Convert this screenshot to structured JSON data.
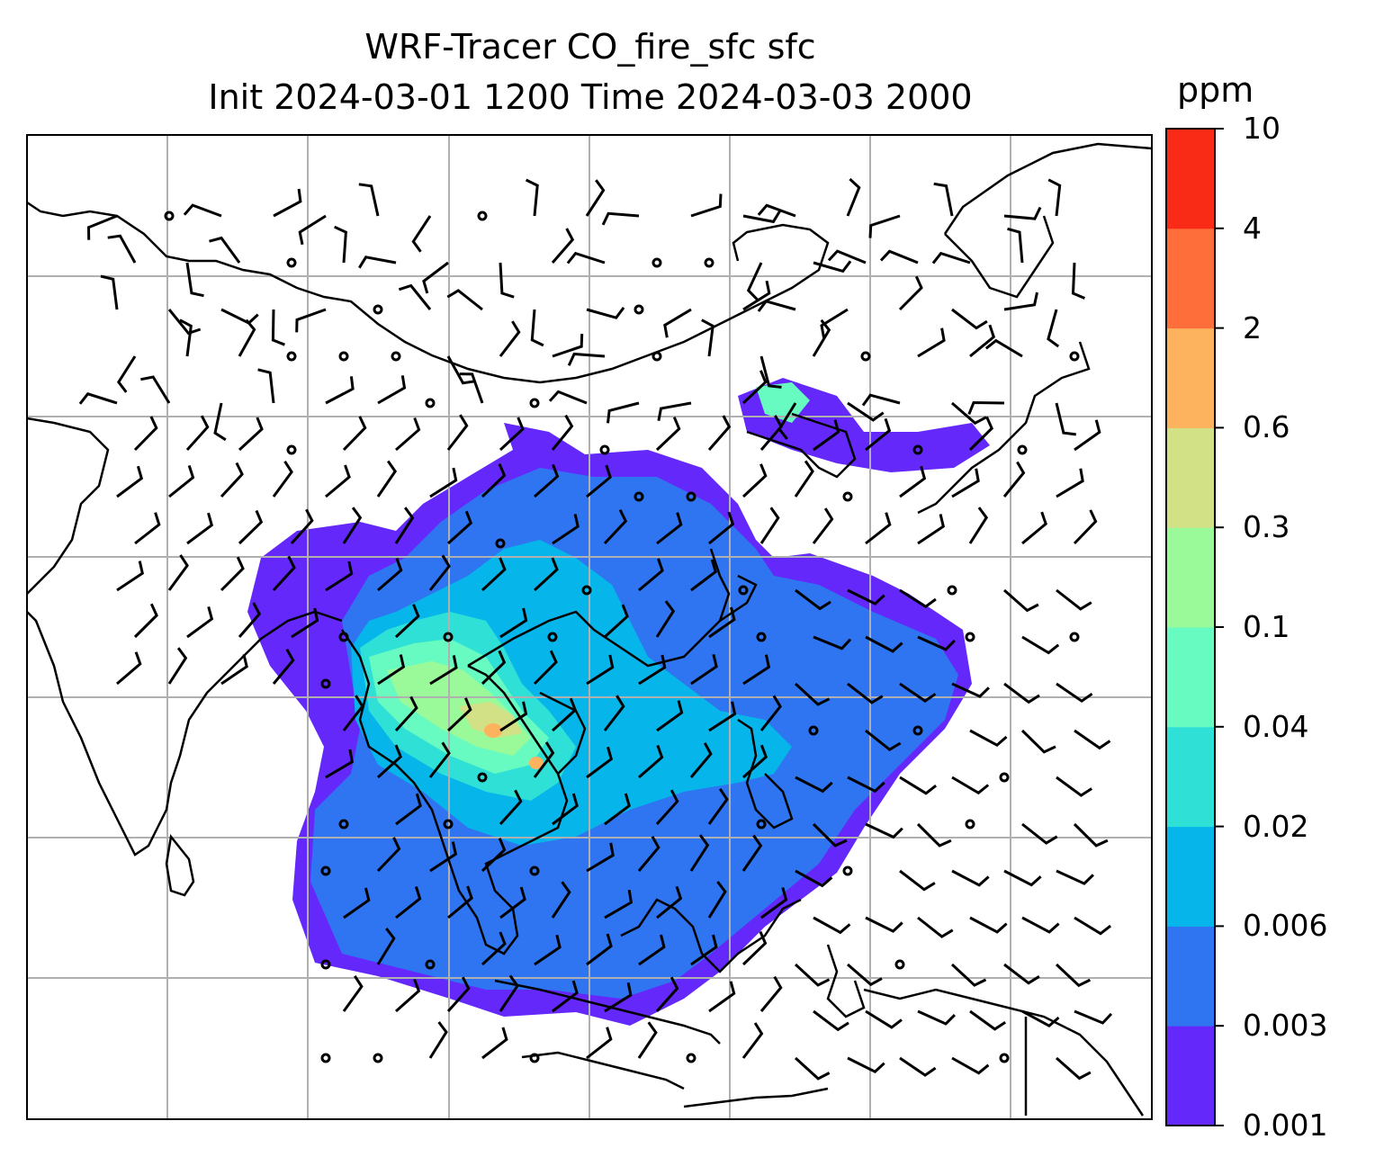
{
  "title": {
    "line1": "WRF-Tracer CO_fire_sfc sfc",
    "line2": "Init 2024-03-01 1200 Time 2024-03-03 2000"
  },
  "colorbar": {
    "unit": "ppm",
    "levels": [
      "0.001",
      "0.003",
      "0.006",
      "0.02",
      "0.04",
      "0.1",
      "0.3",
      "0.6",
      "2",
      "4",
      "10"
    ],
    "colors": [
      "#6428fa",
      "#2f74f0",
      "#06b6ea",
      "#2fe0d6",
      "#67fbc2",
      "#9afa9a",
      "#d2e086",
      "#fdb25e",
      "#fd6e3a",
      "#f92a16"
    ]
  },
  "map": {
    "region": "Southeast Asia",
    "gridlines": true,
    "coastlines": true,
    "wind_barbs": true,
    "field": "CO_fire_sfc"
  }
}
